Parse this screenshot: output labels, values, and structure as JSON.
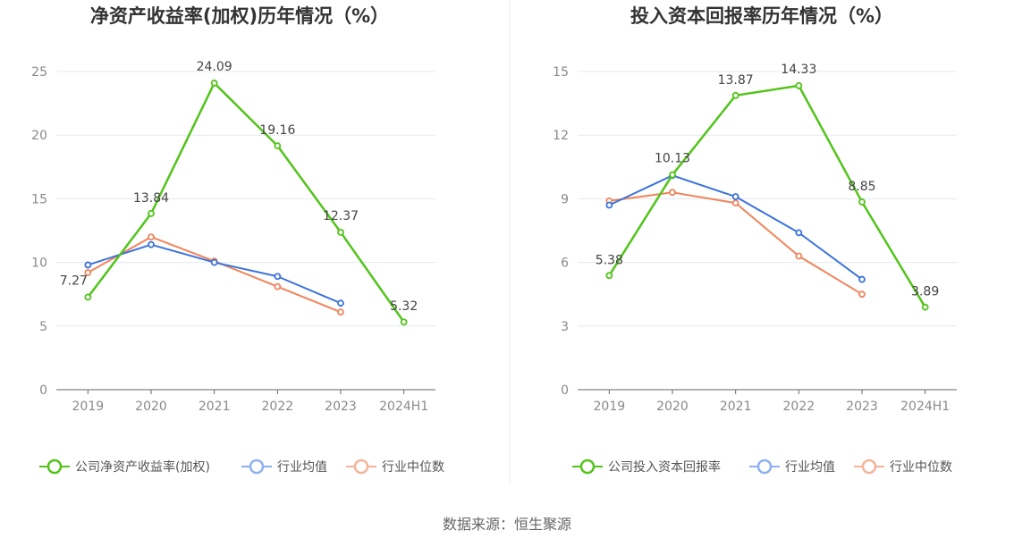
{
  "source": "数据来源：恒生聚源",
  "chart_data": [
    {
      "type": "line",
      "title": "净资产收益率(加权)历年情况（%）",
      "categories": [
        "2019",
        "2020",
        "2021",
        "2022",
        "2023",
        "2024H1"
      ],
      "ylim": [
        0,
        25
      ],
      "yticks": [
        0,
        5,
        10,
        15,
        20,
        25
      ],
      "grid": true,
      "legend_position": "bottom",
      "labeled_series": 0,
      "series": [
        {
          "name": "公司净资产收益率(加权)",
          "color": "#52c41a",
          "values": [
            7.27,
            13.84,
            24.09,
            19.16,
            12.37,
            5.32
          ],
          "labels": [
            "7.27",
            "13.84",
            "24.09",
            "19.16",
            "12.37",
            "5.32"
          ]
        },
        {
          "name": "行业均值",
          "color": "#3b73db",
          "values": [
            9.8,
            11.4,
            10.0,
            8.9,
            6.8,
            null
          ]
        },
        {
          "name": "行业中位数",
          "color": "#f0845a",
          "values": [
            9.2,
            12.0,
            10.1,
            8.1,
            6.1,
            null
          ]
        }
      ]
    },
    {
      "type": "line",
      "title": "投入资本回报率历年情况（%）",
      "categories": [
        "2019",
        "2020",
        "2021",
        "2022",
        "2023",
        "2024H1"
      ],
      "ylim": [
        0,
        15
      ],
      "yticks": [
        0,
        3,
        6,
        9,
        12,
        15
      ],
      "grid": true,
      "legend_position": "bottom",
      "labeled_series": 0,
      "series": [
        {
          "name": "公司投入资本回报率",
          "color": "#52c41a",
          "values": [
            5.38,
            10.13,
            13.87,
            14.33,
            8.85,
            3.89
          ],
          "labels": [
            "5.38",
            "10.13",
            "13.87",
            "14.33",
            "8.85",
            "3.89"
          ]
        },
        {
          "name": "行业均值",
          "color": "#3b73db",
          "values": [
            8.7,
            10.1,
            9.1,
            7.4,
            5.2,
            null
          ]
        },
        {
          "name": "行业中位数",
          "color": "#f0845a",
          "values": [
            8.9,
            9.3,
            8.8,
            6.3,
            4.5,
            null
          ]
        }
      ]
    }
  ]
}
